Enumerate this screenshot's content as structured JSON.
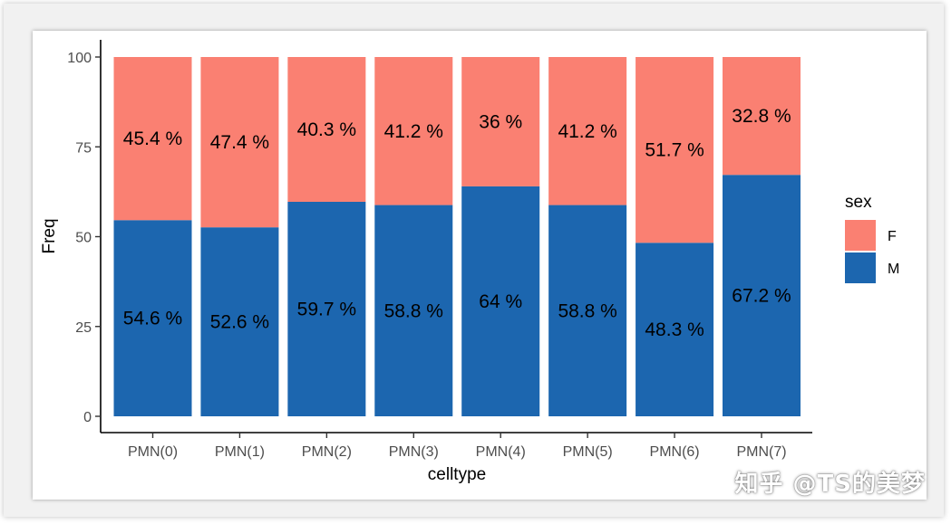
{
  "chart_data": {
    "type": "bar",
    "stacked": true,
    "categories": [
      "PMN(0)",
      "PMN(1)",
      "PMN(2)",
      "PMN(3)",
      "PMN(4)",
      "PMN(5)",
      "PMN(6)",
      "PMN(7)"
    ],
    "series": [
      {
        "name": "M",
        "color": "#1c66af",
        "values": [
          54.6,
          52.6,
          59.7,
          58.8,
          64,
          58.8,
          48.3,
          67.2
        ],
        "labels": [
          "54.6 %",
          "52.6 %",
          "59.7 %",
          "58.8 %",
          "64 %",
          "58.8 %",
          "48.3 %",
          "67.2 %"
        ]
      },
      {
        "name": "F",
        "color": "#fa8072",
        "values": [
          45.4,
          47.4,
          40.3,
          41.2,
          36,
          41.2,
          51.7,
          32.8
        ],
        "labels": [
          "45.4 %",
          "47.4 %",
          "40.3 %",
          "41.2 %",
          "36 %",
          "41.2 %",
          "51.7 %",
          "32.8 %"
        ]
      }
    ],
    "xlabel": "celltype",
    "ylabel": "Freq",
    "ylim": [
      0,
      100
    ],
    "yticks": [
      0,
      25,
      50,
      75,
      100
    ],
    "ytick_labels": [
      "0",
      "25",
      "50",
      "75",
      "100"
    ],
    "grid": false,
    "legend": {
      "title": "sex",
      "entries": [
        {
          "label": "F",
          "color": "#fa8072"
        },
        {
          "label": "M",
          "color": "#1c66af"
        }
      ],
      "placement": "right"
    }
  },
  "watermark": "知乎 @TS的美梦"
}
